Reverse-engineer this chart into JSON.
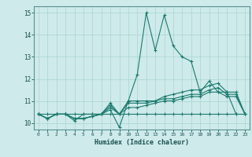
{
  "xlabel": "Humidex (Indice chaleur)",
  "ylabel": "",
  "background_color": "#ceeaea",
  "line_color": "#1a7a6e",
  "xlim": [
    -0.5,
    23.5
  ],
  "ylim": [
    9.7,
    15.3
  ],
  "xticks": [
    0,
    1,
    2,
    3,
    4,
    5,
    6,
    7,
    8,
    9,
    10,
    11,
    12,
    13,
    14,
    15,
    16,
    17,
    18,
    19,
    20,
    21,
    22,
    23
  ],
  "yticks": [
    10,
    11,
    12,
    13,
    14,
    15
  ],
  "series": [
    [
      10.4,
      10.2,
      10.4,
      10.4,
      10.1,
      10.4,
      10.4,
      10.4,
      10.6,
      9.8,
      11.0,
      12.2,
      15.0,
      13.3,
      14.9,
      13.5,
      13.0,
      12.8,
      11.4,
      11.9,
      11.4,
      11.4,
      10.4,
      null
    ],
    [
      10.4,
      10.2,
      10.4,
      10.4,
      10.2,
      10.2,
      10.3,
      10.4,
      10.9,
      10.4,
      11.0,
      11.0,
      11.0,
      11.0,
      11.2,
      11.3,
      11.4,
      11.5,
      11.5,
      11.7,
      11.8,
      11.4,
      11.4,
      10.4
    ],
    [
      10.4,
      10.2,
      10.4,
      10.4,
      10.2,
      10.2,
      10.3,
      10.4,
      10.8,
      10.4,
      10.9,
      10.9,
      10.9,
      11.0,
      11.1,
      11.1,
      11.2,
      11.3,
      11.3,
      11.5,
      11.6,
      11.3,
      11.3,
      10.4
    ],
    [
      10.4,
      10.2,
      10.4,
      10.4,
      10.2,
      10.2,
      10.3,
      10.4,
      10.7,
      10.4,
      10.7,
      10.7,
      10.8,
      10.9,
      11.0,
      11.0,
      11.1,
      11.2,
      11.2,
      11.4,
      11.4,
      11.2,
      11.2,
      10.4
    ],
    [
      10.4,
      10.4,
      10.4,
      10.4,
      10.4,
      10.4,
      10.4,
      10.4,
      10.4,
      10.4,
      10.4,
      10.4,
      10.4,
      10.4,
      10.4,
      10.4,
      10.4,
      10.4,
      10.4,
      10.4,
      10.4,
      10.4,
      10.4,
      10.4
    ]
  ]
}
